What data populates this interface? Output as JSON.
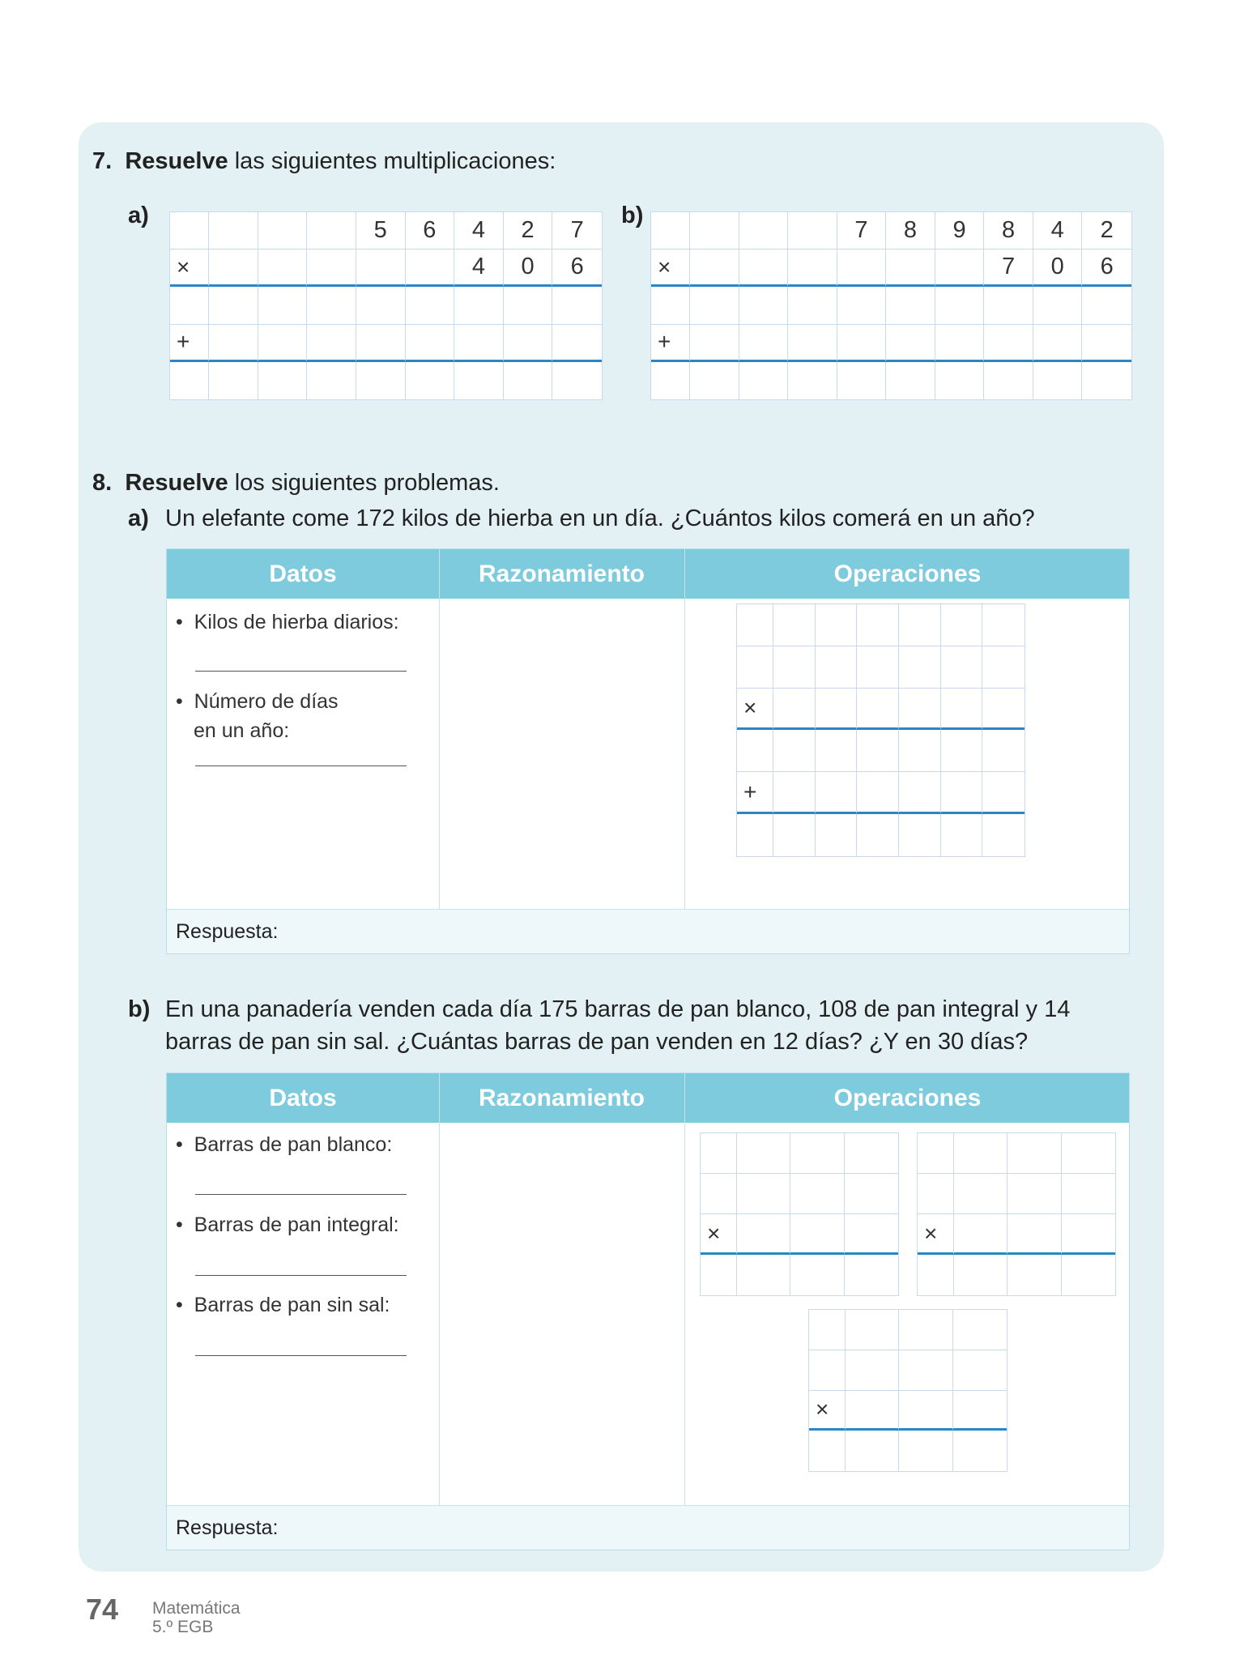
{
  "ex7": {
    "number": "7.",
    "verb": "Resuelve",
    "rest": " las siguientes multiplicaciones:",
    "a_label": "a)",
    "b_label": "b)",
    "grid_a": [
      [
        "",
        "",
        "",
        "",
        "5",
        "6",
        "4",
        "2",
        "7"
      ],
      [
        "×",
        "",
        "",
        "",
        "",
        "",
        "4",
        "0",
        "6"
      ],
      [
        "",
        "",
        "",
        "",
        "",
        "",
        "",
        "",
        ""
      ],
      [
        "+",
        "",
        "",
        "",
        "",
        "",
        "",
        "",
        ""
      ],
      [
        "",
        "",
        "",
        "",
        "",
        "",
        "",
        "",
        ""
      ]
    ],
    "grid_b": [
      [
        "",
        "",
        "",
        "",
        "7",
        "8",
        "9",
        "8",
        "4",
        "2"
      ],
      [
        "×",
        "",
        "",
        "",
        "",
        "",
        "",
        "7",
        "0",
        "6"
      ],
      [
        "",
        "",
        "",
        "",
        "",
        "",
        "",
        "",
        "",
        ""
      ],
      [
        "+",
        "",
        "",
        "",
        "",
        "",
        "",
        "",
        "",
        ""
      ],
      [
        "",
        "",
        "",
        "",
        "",
        "",
        "",
        "",
        "",
        ""
      ]
    ]
  },
  "ex8": {
    "number": "8.",
    "verb": "Resuelve",
    "rest": " los siguientes problemas.",
    "a_label": "a)",
    "a_text": "Un elefante come 172 kilos de hierba en un día. ¿Cuántos kilos comerá en un año?",
    "b_label": "b)",
    "b_text_1": "En una panadería venden cada día 175 barras de pan blanco, 108 de pan integral y 14",
    "b_text_2": "barras de pan sin sal. ¿Cuántas barras de pan venden en 12 días? ¿Y en 30 días?",
    "headers": [
      "Datos",
      "Razonamiento",
      "Operaciones"
    ],
    "respuesta": "Respuesta:",
    "a_items": [
      "Kilos de hierba diarios:",
      "Número de días",
      "en un año:"
    ],
    "b_items": [
      "Barras de pan blanco:",
      "Barras de pan integral:",
      "Barras de pan sin sal:"
    ],
    "bullet": "•",
    "ops_a": [
      [
        "",
        "",
        "",
        "",
        "",
        "",
        ""
      ],
      [
        "",
        "",
        "",
        "",
        "",
        "",
        ""
      ],
      [
        "×",
        "",
        "",
        "",
        "",
        "",
        ""
      ],
      [
        "",
        "",
        "",
        "",
        "",
        "",
        ""
      ],
      [
        "+",
        "",
        "",
        "",
        "",
        "",
        ""
      ],
      [
        "",
        "",
        "",
        "",
        "",
        "",
        ""
      ]
    ],
    "ops_b": [
      [
        "",
        "",
        "",
        ""
      ],
      [
        "",
        "",
        "",
        ""
      ],
      [
        "×",
        "",
        "",
        ""
      ],
      [
        "",
        "",
        "",
        ""
      ]
    ]
  },
  "footer": {
    "page": "74",
    "subject": "Matemática",
    "grade": "5.º EGB"
  },
  "colors": {
    "panel": "#e3f1f5",
    "header": "#7ecbde",
    "rule": "#2a86c7",
    "gridline": "#c4daee"
  }
}
